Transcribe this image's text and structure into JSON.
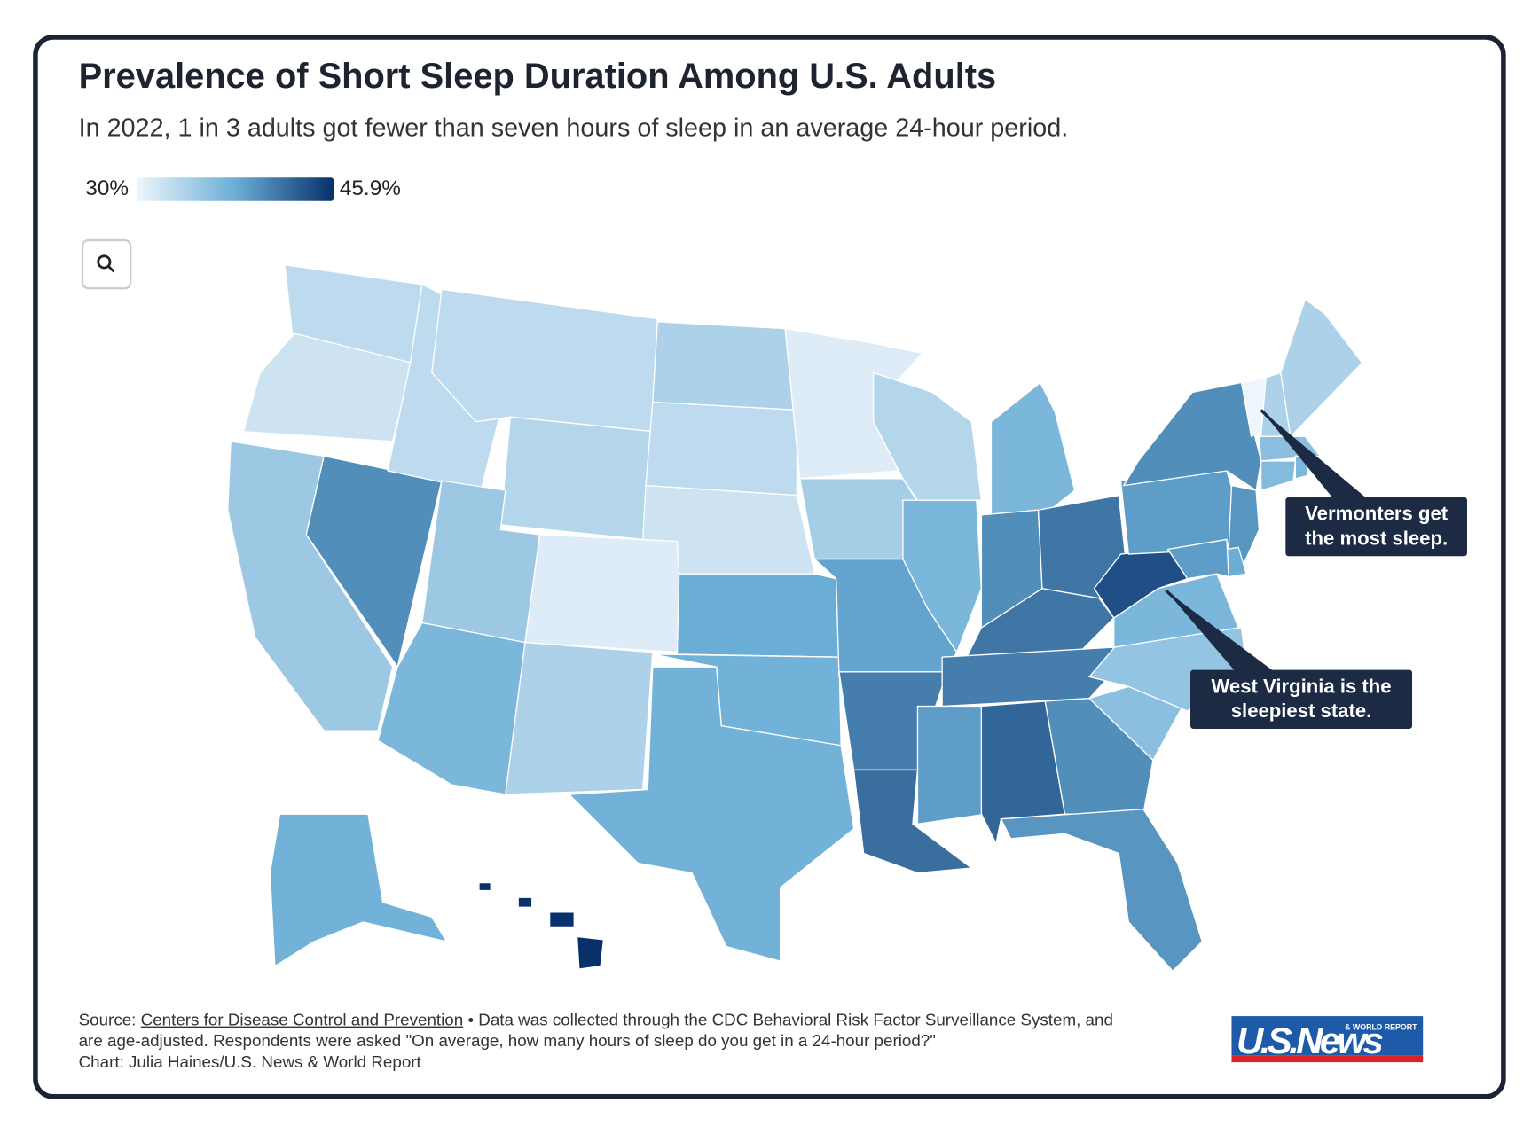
{
  "chart_data": {
    "type": "choropleth",
    "title": "Prevalence of Short Sleep Duration Among U.S. Adults",
    "subtitle": "In 2022, 1 in 3 adults got fewer than seven hours of sleep in an average 24-hour period.",
    "colorscale": {
      "min": {
        "value": 30,
        "label": "30%"
      },
      "max": {
        "value": 45.9,
        "label": "45.9%"
      },
      "colors": [
        "#eef5fc",
        "#6baed6",
        "#08306b"
      ]
    },
    "values": [
      33,
      32,
      35,
      40,
      33,
      33,
      33.5,
      35,
      31,
      37,
      34,
      34,
      33,
      32,
      38,
      37.5,
      37.5,
      31,
      34.5,
      38.5,
      41,
      42,
      33.5,
      37,
      37,
      40,
      41.5,
      41.5,
      41,
      39,
      42.5,
      40,
      39.5,
      36,
      35.5,
      37,
      44,
      39,
      40,
      30,
      34,
      34,
      36,
      36.5,
      37,
      39.5,
      38,
      39,
      37.5,
      45.9
    ],
    "annotations": [
      {
        "lines": [
          "Vermonters get",
          "the most sleep."
        ]
      },
      {
        "lines": [
          "West Virginia is the",
          "sleepiest state."
        ]
      }
    ]
  },
  "footer": {
    "source_prefix": "Source:",
    "source_link": "Centers for Disease Control and Prevention",
    "note_line1": "• Data was collected through the CDC Behavioral Risk Factor Surveillance System, and",
    "note_line2": "are age-adjusted. Respondents were asked \"On average, how many hours of sleep do you get in a 24-hour period?\"",
    "credit": "Chart: Julia Haines/U.S. News & World Report"
  },
  "logo": {
    "name": "U.S.News",
    "tagline": "& WORLD REPORT"
  }
}
